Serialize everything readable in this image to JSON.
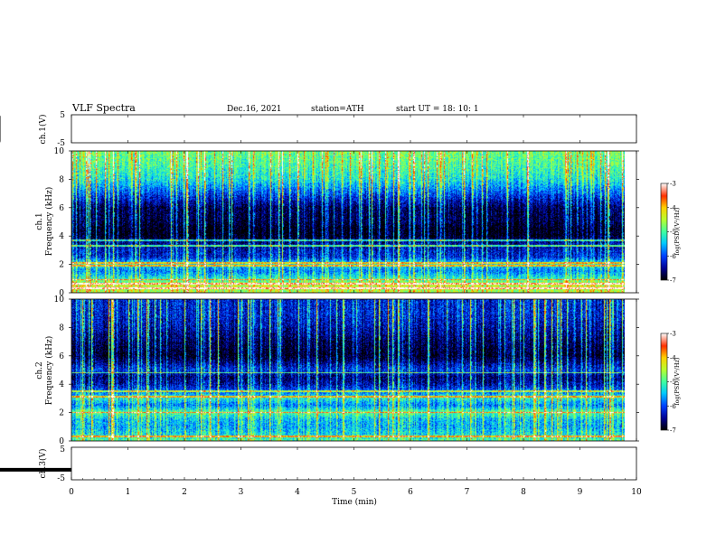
{
  "header": {
    "title": "VLF Spectra",
    "date": "Dec.16, 2021",
    "station": "station=ATH",
    "start_ut": "start UT =  18: 10: 1"
  },
  "colors": {
    "colormap": [
      "#000000",
      "#00008f",
      "#0040ff",
      "#00c8ff",
      "#40ffa0",
      "#b4ff30",
      "#ffd000",
      "#ff3000",
      "#ffffff"
    ],
    "trace": "#000000"
  },
  "chart_data": [
    {
      "name": "ch1-waveform",
      "type": "line",
      "ylabel": "ch.1(V)",
      "ylim": [
        -5,
        5
      ],
      "yticks": [
        "5",
        "-5"
      ],
      "baseline": 0,
      "amplitude": 0.6,
      "xlim": [
        0,
        10
      ]
    },
    {
      "name": "ch1-spectrogram",
      "type": "heatmap",
      "ylabel_top": "ch.1",
      "ylabel": "Frequency (kHz)",
      "ylim": [
        0,
        10
      ],
      "yticks": [
        "0",
        "2",
        "4",
        "6",
        "8",
        "10"
      ],
      "xlim": [
        0,
        10
      ],
      "data_end_min": 9.8,
      "colorbar": {
        "label": "log(PSD)(V²/Hz)",
        "range": [
          -7,
          -3
        ],
        "ticks": [
          "-3",
          "-4",
          "-5",
          "-6",
          "-7"
        ]
      },
      "level_profile": [
        {
          "f": 0.0,
          "v": -4.6
        },
        {
          "f": 0.5,
          "v": -4.4
        },
        {
          "f": 1.0,
          "v": -5.2
        },
        {
          "f": 1.5,
          "v": -5.8
        },
        {
          "f": 2.0,
          "v": -5.3
        },
        {
          "f": 2.5,
          "v": -6.2
        },
        {
          "f": 3.0,
          "v": -6.3
        },
        {
          "f": 3.5,
          "v": -6.5
        },
        {
          "f": 4.0,
          "v": -7.0
        },
        {
          "f": 4.5,
          "v": -7.0
        },
        {
          "f": 5.0,
          "v": -6.8
        },
        {
          "f": 6.0,
          "v": -6.7
        },
        {
          "f": 7.0,
          "v": -6.0
        },
        {
          "f": 8.0,
          "v": -5.3
        },
        {
          "f": 9.0,
          "v": -5.0
        },
        {
          "f": 10.0,
          "v": -4.8
        }
      ],
      "lines_khz": [
        0.3,
        0.6,
        0.9,
        1.9,
        2.1,
        3.3,
        3.7
      ],
      "sferics_per_min": 11
    },
    {
      "name": "ch2-spectrogram",
      "type": "heatmap",
      "ylabel_top": "ch.2",
      "ylabel": "Frequency (kHz)",
      "ylim": [
        0,
        10
      ],
      "yticks": [
        "0",
        "2",
        "4",
        "6",
        "8",
        "10"
      ],
      "xlim": [
        0,
        10
      ],
      "data_end_min": 9.8,
      "colorbar": {
        "label": "log(PSD)(V²/Hz)",
        "range": [
          -7,
          -3
        ],
        "ticks": [
          "-3",
          "-4",
          "-5",
          "-6",
          "-7"
        ]
      },
      "level_profile": [
        {
          "f": 0.0,
          "v": -5.0
        },
        {
          "f": 0.5,
          "v": -5.4
        },
        {
          "f": 1.0,
          "v": -5.6
        },
        {
          "f": 1.5,
          "v": -5.5
        },
        {
          "f": 2.0,
          "v": -4.9
        },
        {
          "f": 2.5,
          "v": -5.8
        },
        {
          "f": 3.0,
          "v": -5.2
        },
        {
          "f": 3.5,
          "v": -5.9
        },
        {
          "f": 4.0,
          "v": -6.4
        },
        {
          "f": 4.5,
          "v": -6.6
        },
        {
          "f": 5.0,
          "v": -6.1
        },
        {
          "f": 6.0,
          "v": -6.9
        },
        {
          "f": 7.0,
          "v": -6.7
        },
        {
          "f": 8.0,
          "v": -6.4
        },
        {
          "f": 9.0,
          "v": -6.2
        },
        {
          "f": 10.0,
          "v": -6.2
        }
      ],
      "lines_khz": [
        0.3,
        2.0,
        3.1,
        3.5,
        4.8
      ],
      "sferics_per_min": 11
    },
    {
      "name": "ch3-waveform",
      "type": "line",
      "ylabel": "ch.3(V)",
      "ylim": [
        -5,
        5
      ],
      "yticks": [
        "5",
        "-5"
      ],
      "baseline": -1.9,
      "amplitude": 0.0,
      "xlim": [
        0,
        10
      ],
      "xlabel": "Time  (min)",
      "xticks": [
        "0",
        "1",
        "2",
        "3",
        "4",
        "5",
        "6",
        "7",
        "8",
        "9",
        "10"
      ]
    }
  ]
}
